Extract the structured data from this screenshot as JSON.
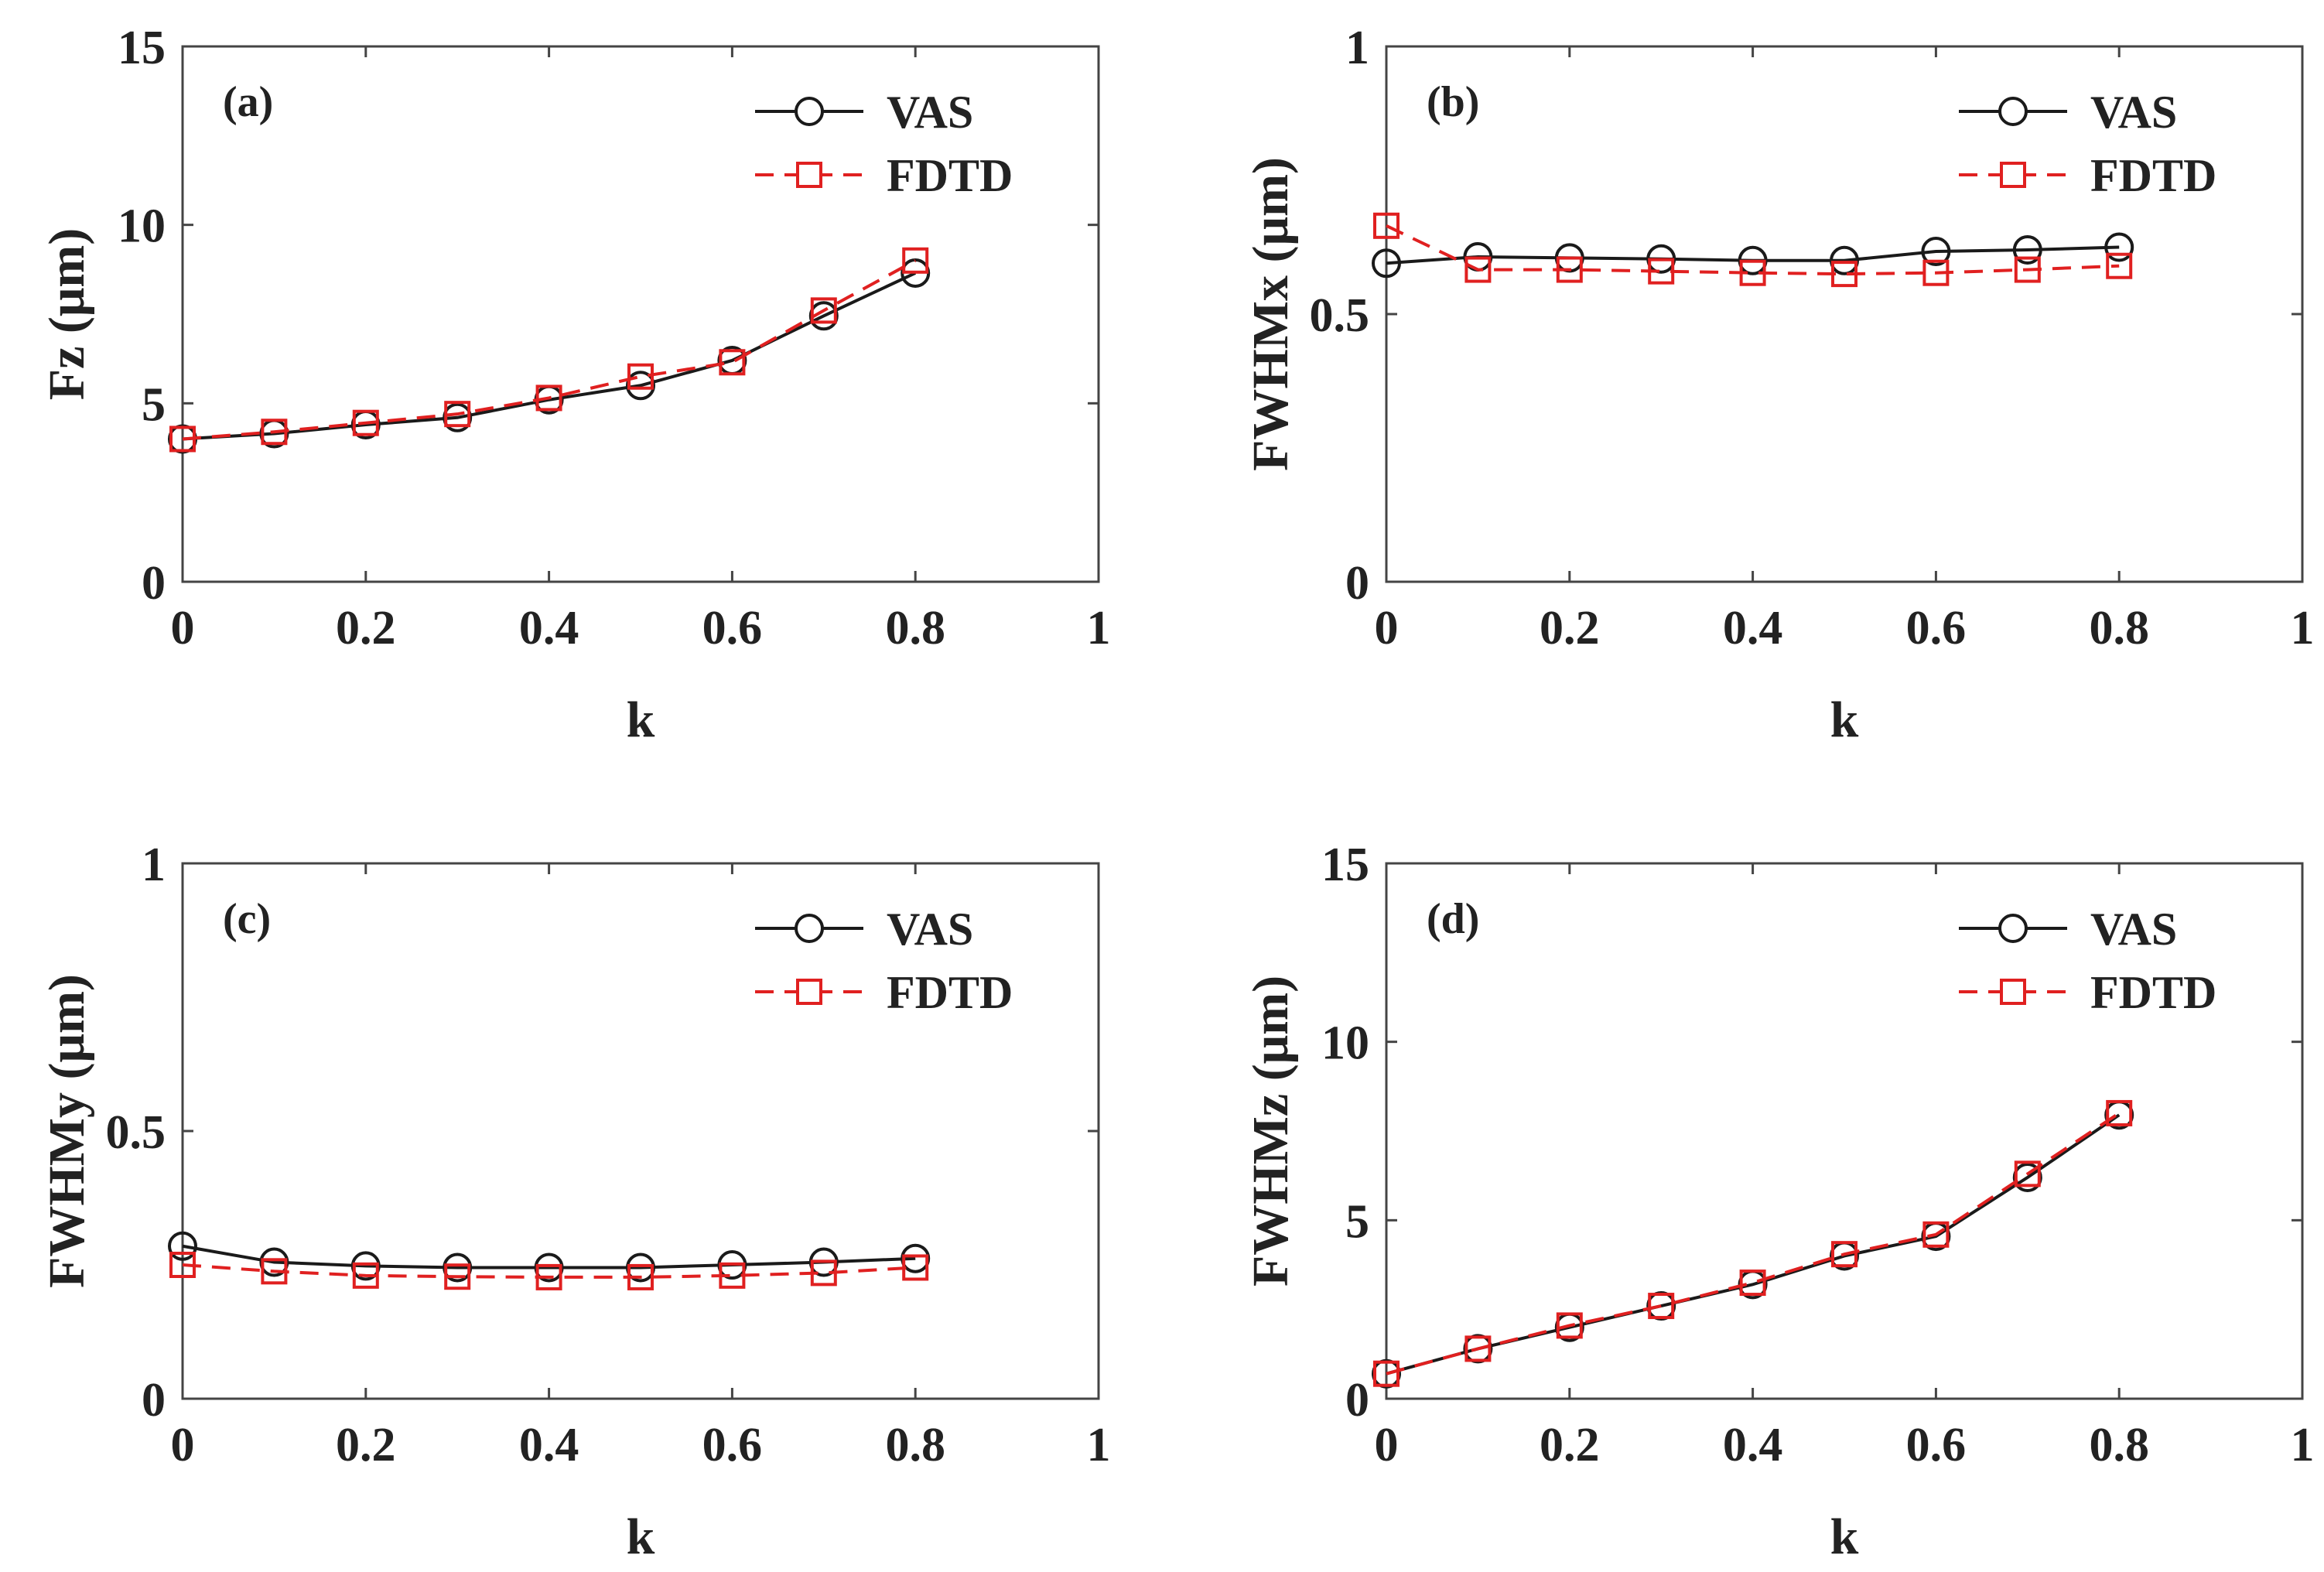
{
  "chart_data": [
    {
      "type": "line",
      "panel_label": "(a)",
      "xlabel": "k",
      "ylabel": "Fz (μm)",
      "xlim": [
        0,
        1
      ],
      "ylim": [
        0,
        15
      ],
      "xticks": [
        "0",
        "0.2",
        "0.4",
        "0.6",
        "0.8",
        "1"
      ],
      "yticks": [
        "0",
        "5",
        "10",
        "15"
      ],
      "grid": false,
      "legend_position": "top-right",
      "x": [
        0,
        0.1,
        0.2,
        0.3,
        0.4,
        0.5,
        0.6,
        0.7,
        0.8
      ],
      "series": [
        {
          "name": "VAS",
          "values": [
            4.0,
            4.15,
            4.4,
            4.6,
            5.1,
            5.5,
            6.2,
            7.45,
            8.65
          ],
          "color": "#1a1a1a",
          "marker": "circle",
          "line": "solid"
        },
        {
          "name": "FDTD",
          "values": [
            4.0,
            4.2,
            4.45,
            4.7,
            5.15,
            5.75,
            6.15,
            7.6,
            9.0
          ],
          "color": "#e02020",
          "marker": "square",
          "line": "dashed"
        }
      ]
    },
    {
      "type": "line",
      "panel_label": "(b)",
      "xlabel": "k",
      "ylabel": "FWHMx (μm)",
      "xlim": [
        0,
        1
      ],
      "ylim": [
        0,
        1
      ],
      "xticks": [
        "0",
        "0.2",
        "0.4",
        "0.6",
        "0.8",
        "1"
      ],
      "yticks": [
        "0",
        "0.5",
        "1"
      ],
      "grid": false,
      "legend_position": "top-right",
      "x": [
        0,
        0.1,
        0.2,
        0.3,
        0.4,
        0.5,
        0.6,
        0.7,
        0.8
      ],
      "series": [
        {
          "name": "VAS",
          "values": [
            0.595,
            0.607,
            0.605,
            0.603,
            0.6,
            0.6,
            0.617,
            0.62,
            0.625
          ],
          "color": "#1a1a1a",
          "marker": "circle",
          "line": "solid"
        },
        {
          "name": "FDTD",
          "values": [
            0.665,
            0.583,
            0.583,
            0.58,
            0.577,
            0.575,
            0.577,
            0.583,
            0.59
          ],
          "color": "#e02020",
          "marker": "square",
          "line": "dashed"
        }
      ]
    },
    {
      "type": "line",
      "panel_label": "(c)",
      "xlabel": "k",
      "ylabel": "FWHMy (μm)",
      "xlim": [
        0,
        1
      ],
      "ylim": [
        0,
        1
      ],
      "xticks": [
        "0",
        "0.2",
        "0.4",
        "0.6",
        "0.8",
        "1"
      ],
      "yticks": [
        "0",
        "0.5",
        "1"
      ],
      "grid": false,
      "legend_position": "top-right",
      "x": [
        0,
        0.1,
        0.2,
        0.3,
        0.4,
        0.5,
        0.6,
        0.7,
        0.8
      ],
      "series": [
        {
          "name": "VAS",
          "values": [
            0.285,
            0.255,
            0.248,
            0.245,
            0.245,
            0.245,
            0.25,
            0.255,
            0.262
          ],
          "color": "#1a1a1a",
          "marker": "circle",
          "line": "solid"
        },
        {
          "name": "FDTD",
          "values": [
            0.25,
            0.238,
            0.23,
            0.228,
            0.227,
            0.227,
            0.23,
            0.235,
            0.245
          ],
          "color": "#e02020",
          "marker": "square",
          "line": "dashed"
        }
      ]
    },
    {
      "type": "line",
      "panel_label": "(d)",
      "xlabel": "k",
      "ylabel": "FWHMz (μm)",
      "xlim": [
        0,
        1
      ],
      "ylim": [
        0,
        15
      ],
      "xticks": [
        "0",
        "0.2",
        "0.4",
        "0.6",
        "0.8",
        "1"
      ],
      "yticks": [
        "0",
        "5",
        "10",
        "15"
      ],
      "grid": false,
      "legend_position": "top-right",
      "x": [
        0,
        0.1,
        0.2,
        0.3,
        0.4,
        0.5,
        0.6,
        0.7,
        0.8
      ],
      "series": [
        {
          "name": "VAS",
          "values": [
            0.7,
            1.4,
            2.0,
            2.6,
            3.2,
            4.0,
            4.55,
            6.2,
            7.95
          ],
          "color": "#1a1a1a",
          "marker": "circle",
          "line": "solid"
        },
        {
          "name": "FDTD",
          "values": [
            0.7,
            1.4,
            2.05,
            2.6,
            3.25,
            4.05,
            4.6,
            6.3,
            8.0
          ],
          "color": "#e02020",
          "marker": "square",
          "line": "dashed"
        }
      ]
    }
  ]
}
